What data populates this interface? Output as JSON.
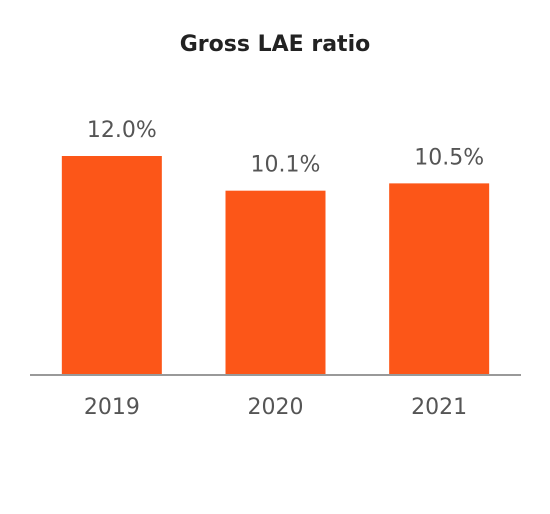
{
  "chart_data": {
    "type": "bar",
    "title": "Gross LAE ratio",
    "categories": [
      "2019",
      "2020",
      "2021"
    ],
    "values": [
      12.0,
      10.1,
      10.5
    ],
    "value_labels": [
      "12.0%",
      "10.1%",
      "10.5%"
    ],
    "color": "#fc5618"
  }
}
